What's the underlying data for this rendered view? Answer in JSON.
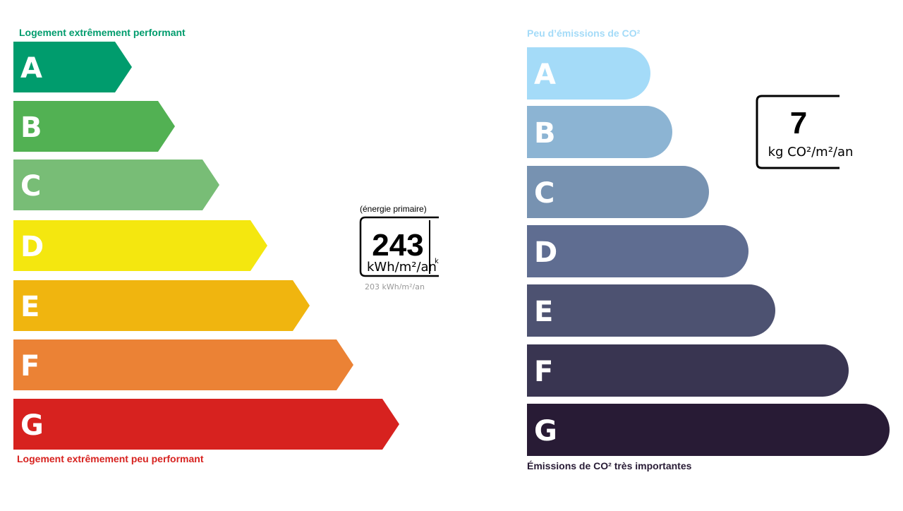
{
  "energy": {
    "top_label": "Logement extrêmement performant",
    "bottom_label": "Logement extrêmement peu performant",
    "classes": [
      "A",
      "B",
      "C",
      "D",
      "E",
      "F",
      "G"
    ],
    "box": {
      "caption": "(énergie primaire)",
      "value": "243",
      "unit": "kWh/m²/an",
      "overflow_text": "k",
      "below_text": "203 kWh/m²/an"
    }
  },
  "climate": {
    "top_label": "Peu d’émissions de CO²",
    "bottom_label": "Émissions de CO² très importantes",
    "classes": [
      "A",
      "B",
      "C",
      "D",
      "E",
      "F",
      "G"
    ],
    "box": {
      "value": "7",
      "unit": "kg CO²/m²/an"
    }
  }
}
